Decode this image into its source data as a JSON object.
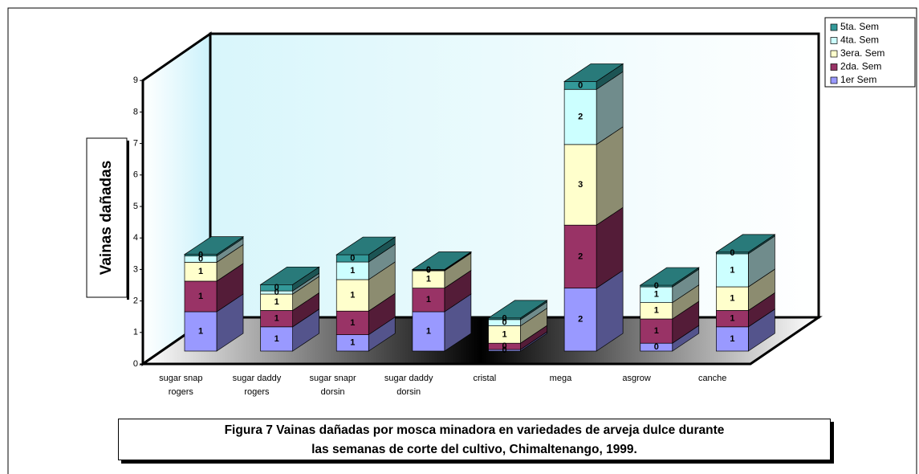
{
  "chart_data": {
    "type": "bar3d_stacked",
    "title": [
      "Figura 7 Vainas dañadas por mosca minadora  en variedades de arveja dulce durante",
      "las semanas de corte del cultivo,  Chimaltenango, 1999."
    ],
    "y_label": "Vainas dañadas",
    "categories": [
      "sugar snap rogers",
      "sugar daddy rogers",
      "sugar snapr dorsin",
      "sugar daddy dorsin",
      "cristal",
      "mega",
      "asgrow",
      "canche"
    ],
    "ylim": [
      0,
      9
    ],
    "yticks": [
      0,
      1,
      2,
      3,
      4,
      5,
      6,
      7,
      8,
      9
    ],
    "legend": "top-right",
    "series": [
      {
        "name": "1er  Sem",
        "color": "#9999ff",
        "values": [
          1.25,
          0.77,
          0.52,
          1.25,
          0.05,
          2.0,
          0.25,
          0.77
        ],
        "value_labels": [
          "1",
          "1",
          "1",
          "1",
          "0",
          "2",
          "0",
          "1"
        ]
      },
      {
        "name": "2da. Sem",
        "color": "#993366",
        "values": [
          0.97,
          0.52,
          0.75,
          0.75,
          0.2,
          2.0,
          0.77,
          0.52
        ],
        "value_labels": [
          "1",
          "1",
          "1",
          "1",
          "0",
          "2",
          "1",
          "1"
        ]
      },
      {
        "name": "3era. Sem",
        "color": "#ffffcc",
        "values": [
          0.6,
          0.52,
          1.0,
          0.55,
          0.55,
          2.56,
          0.52,
          0.75
        ],
        "value_labels": [
          "1",
          "1",
          "1",
          "1",
          "1",
          "3",
          "1",
          "1"
        ]
      },
      {
        "name": "4ta. Sem",
        "color": "#ccffff",
        "values": [
          0.2,
          0.1,
          0.56,
          0.02,
          0.2,
          1.75,
          0.5,
          1.05
        ],
        "value_labels": [
          "0",
          "0",
          "1",
          "0",
          "0",
          "2",
          "1",
          "1"
        ]
      },
      {
        "name": "5ta. Sem",
        "color": "#339999",
        "values": [
          0.05,
          0.2,
          0.23,
          0.02,
          0.05,
          0.25,
          0.05,
          0.05
        ],
        "value_labels": [
          "0",
          "0",
          "0",
          "0",
          "0",
          "0",
          "0",
          "0"
        ]
      }
    ]
  }
}
